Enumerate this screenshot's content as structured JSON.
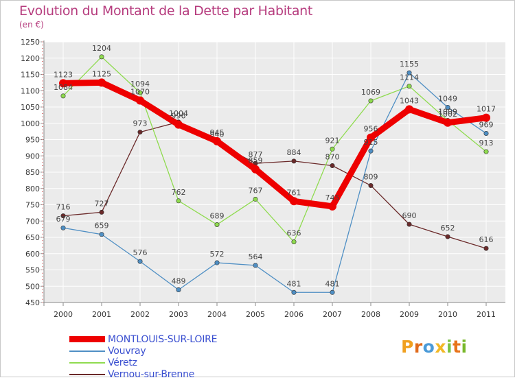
{
  "chart_data": {
    "type": "line",
    "title": "Evolution du Montant de la Dette par Habitant",
    "unit_label": "(en €)",
    "xlabel": "",
    "ylabel": "",
    "x": [
      "2000",
      "2001",
      "2002",
      "2003",
      "2004",
      "2005",
      "2006",
      "2007",
      "2008",
      "2009",
      "2010",
      "2011"
    ],
    "ylim": [
      450,
      1250
    ],
    "yticks": [
      450,
      500,
      550,
      600,
      650,
      700,
      750,
      800,
      850,
      900,
      950,
      1000,
      1050,
      1100,
      1150,
      1200,
      1250
    ],
    "grid": true,
    "legend_position": "bottom-left",
    "series": [
      {
        "name": "Vernou-sur-Brenne",
        "color": "#6b2a2a",
        "values": [
          716,
          727,
          973,
          1004,
          940,
          877,
          884,
          870,
          809,
          690,
          652,
          616
        ]
      },
      {
        "name": "Véretz",
        "color": "#8fdb4f",
        "values": [
          1084,
          1204,
          1094,
          762,
          689,
          767,
          636,
          921,
          1069,
          1114,
          1009,
          913
        ]
      },
      {
        "name": "Vouvray",
        "color": "#4f8fc4",
        "values": [
          679,
          659,
          576,
          489,
          572,
          564,
          481,
          481,
          915,
          1155,
          1049,
          969
        ]
      },
      {
        "name": "MONTLOUIS-SUR-LOIRE",
        "color": "#ee0000",
        "values": [
          1123,
          1125,
          1070,
          996,
          945,
          859,
          761,
          745,
          956,
          1043,
          1002,
          1017
        ]
      }
    ],
    "legend": [
      "MONTLOUIS-SUR-LOIRE",
      "Vouvray",
      "Véretz",
      "Vernou-sur-Brenne"
    ]
  },
  "brand": {
    "letters": [
      "P",
      "r",
      "o",
      "x",
      "i",
      "t",
      "i"
    ],
    "colors": [
      "#f0a020",
      "#e06a1b",
      "#4a9ad8",
      "#f2b825",
      "#7ac242",
      "#e8731a",
      "#78b82a"
    ]
  }
}
